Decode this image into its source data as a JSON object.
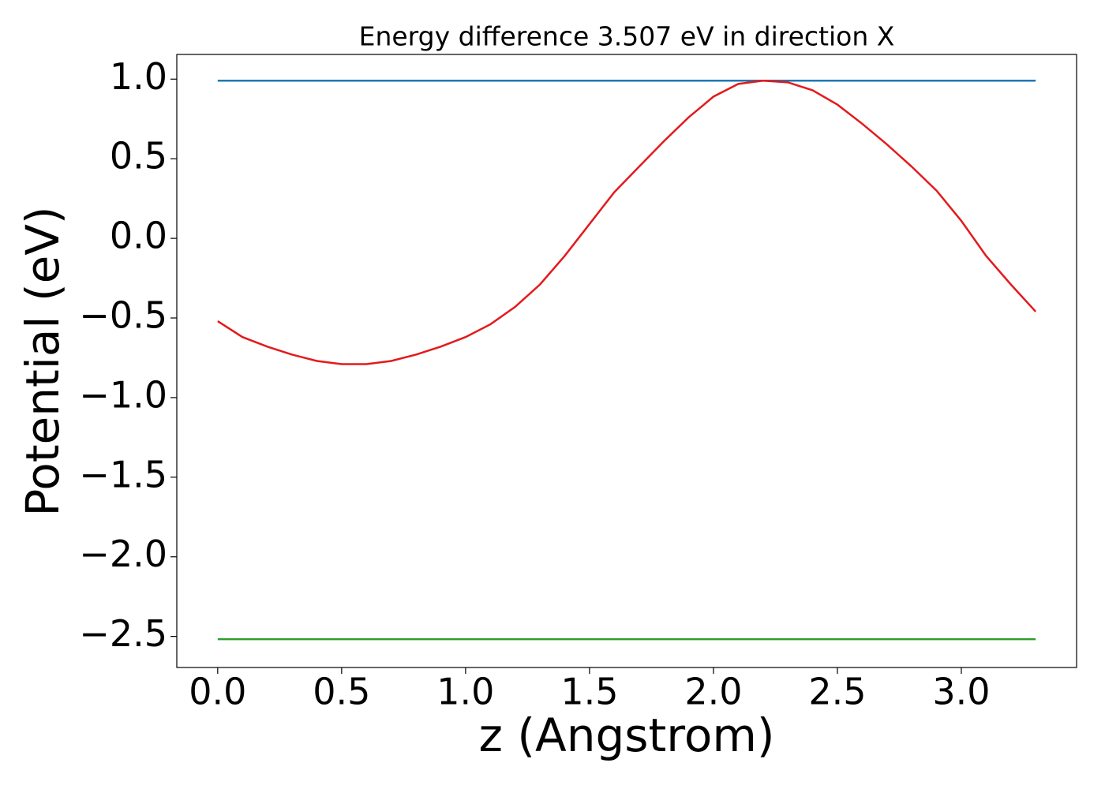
{
  "chart_data": {
    "type": "line",
    "title": "Energy difference 3.507 eV in direction X",
    "xlabel": "z (Angstrom)",
    "ylabel": "Potential (eV)",
    "xlim": [
      -0.165,
      3.465
    ],
    "ylim": [
      -2.695,
      1.155
    ],
    "xticks": [
      {
        "value": 0,
        "label": "0.0"
      },
      0.5,
      {
        "value": 1,
        "label": "1.0"
      },
      1.5,
      {
        "value": 2,
        "label": "2.0"
      },
      2.5,
      {
        "value": 3,
        "label": "3.0"
      }
    ],
    "yticks": [
      {
        "value": 1,
        "label": "1.0"
      },
      0.5,
      {
        "value": 0,
        "label": "0.0"
      },
      {
        "value": -0.5,
        "label": "−0.5"
      },
      {
        "value": -1,
        "label": "−1.0"
      },
      {
        "value": -1.5,
        "label": "−1.5"
      },
      {
        "value": -2,
        "label": "−2.0"
      },
      {
        "value": -2.5,
        "label": "−2.5"
      }
    ],
    "series": [
      {
        "color": "#1f77b4",
        "x": [
          0,
          3.3
        ],
        "values": [
          0.99,
          0.99
        ]
      },
      {
        "color": "#2ca02c",
        "x": [
          0,
          3.3
        ],
        "values": [
          -2.517,
          -2.517
        ]
      },
      {
        "color": "#e31a1c",
        "x": [
          0,
          0.1,
          0.2,
          0.3,
          0.4,
          0.5,
          0.6,
          0.7,
          0.8,
          0.9,
          1.0,
          1.1,
          1.2,
          1.3,
          1.4,
          1.5,
          1.6,
          1.7,
          1.8,
          1.9,
          2.0,
          2.1,
          2.2,
          2.3,
          2.4,
          2.5,
          2.6,
          2.7,
          2.8,
          2.9,
          3.0,
          3.1,
          3.2,
          3.3
        ],
        "values": [
          -0.52,
          -0.62,
          -0.68,
          -0.73,
          -0.77,
          -0.79,
          -0.79,
          -0.77,
          -0.73,
          -0.68,
          -0.62,
          -0.54,
          -0.43,
          -0.29,
          -0.11,
          0.09,
          0.29,
          0.45,
          0.61,
          0.76,
          0.89,
          0.97,
          0.99,
          0.98,
          0.93,
          0.84,
          0.72,
          0.59,
          0.45,
          0.3,
          0.11,
          -0.11,
          -0.29,
          -0.46
        ]
      }
    ]
  }
}
